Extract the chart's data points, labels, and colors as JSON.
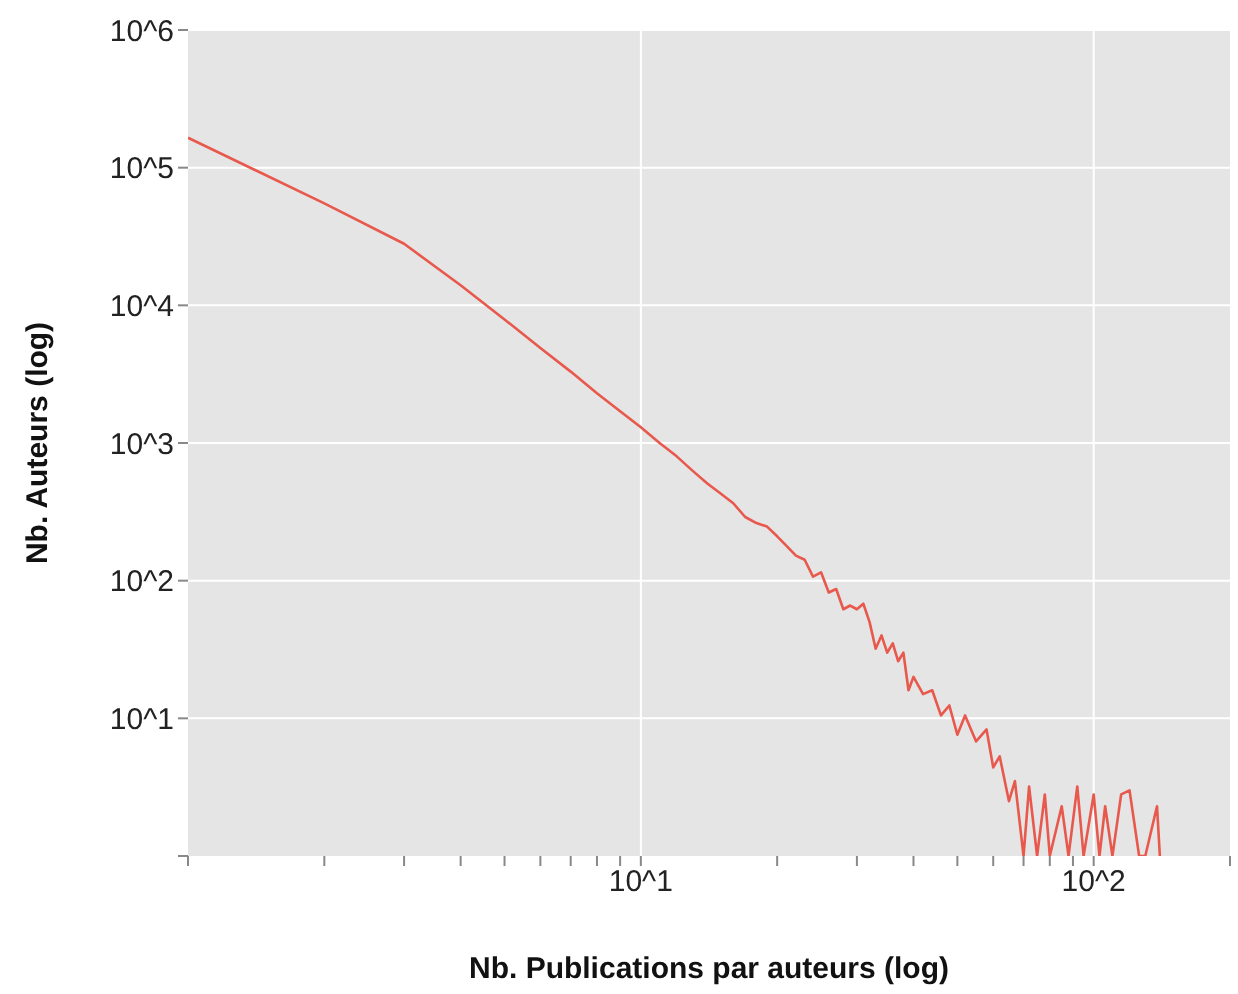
{
  "chart_data": {
    "type": "line",
    "xlabel": "Nb. Publications par auteurs (log)",
    "ylabel": "Nb. Auteurs (log)",
    "log": "xy",
    "grid": true,
    "legend": false,
    "marker": "none",
    "line_style": "solid",
    "xlim": [
      1,
      200
    ],
    "ylim": [
      1,
      1000000
    ],
    "xticks": [
      {
        "value": 1,
        "label": null
      },
      {
        "value": 2,
        "label": null
      },
      {
        "value": 3,
        "label": null
      },
      {
        "value": 4,
        "label": null
      },
      {
        "value": 5,
        "label": null
      },
      {
        "value": 6,
        "label": null
      },
      {
        "value": 7,
        "label": null
      },
      {
        "value": 8,
        "label": null
      },
      {
        "value": 9,
        "label": null
      },
      {
        "value": 10,
        "label": "10^1"
      },
      {
        "value": 20,
        "label": null
      },
      {
        "value": 30,
        "label": null
      },
      {
        "value": 40,
        "label": null
      },
      {
        "value": 50,
        "label": null
      },
      {
        "value": 60,
        "label": null
      },
      {
        "value": 70,
        "label": null
      },
      {
        "value": 80,
        "label": null
      },
      {
        "value": 90,
        "label": null
      },
      {
        "value": 100,
        "label": "10^2"
      },
      {
        "value": 200,
        "label": null
      }
    ],
    "yticks": [
      {
        "value": 1,
        "label": null
      },
      {
        "value": 10,
        "label": "10^1"
      },
      {
        "value": 100,
        "label": "10^2"
      },
      {
        "value": 1000,
        "label": "10^3"
      },
      {
        "value": 10000,
        "label": "10^4"
      },
      {
        "value": 100000,
        "label": "10^5"
      },
      {
        "value": 1000000,
        "label": "10^6"
      }
    ],
    "series": [
      {
        "color": "#e8584c",
        "x": [
          1,
          2,
          3,
          4,
          5,
          6,
          7,
          8,
          9,
          10,
          11,
          12,
          13,
          14,
          15,
          16,
          17,
          18,
          19,
          20,
          21,
          22,
          23,
          24,
          25,
          26,
          27,
          28,
          29,
          30,
          31,
          32,
          33,
          34,
          35,
          36,
          37,
          38,
          39,
          40,
          42,
          44,
          46,
          48,
          50,
          52,
          55,
          58,
          60,
          62,
          65,
          67,
          70,
          72,
          75,
          78,
          80,
          85,
          88,
          92,
          95,
          100,
          103,
          106,
          110,
          115,
          120,
          126,
          130,
          138,
          140
        ],
        "values": [
          165000,
          55000,
          28000,
          14000,
          7900,
          4900,
          3300,
          2300,
          1700,
          1300,
          1000,
          800,
          630,
          510,
          430,
          365,
          290,
          262,
          247,
          210,
          178,
          152,
          142,
          107,
          115,
          82,
          87,
          62,
          66,
          62,
          68,
          50,
          32,
          40,
          30,
          35,
          26,
          30,
          16,
          20,
          15,
          16,
          10.5,
          12.4,
          7.6,
          10.5,
          6.8,
          8.3,
          4.4,
          5.3,
          2.5,
          3.5,
          1,
          3.2,
          1,
          2.8,
          1,
          2.3,
          1,
          3.2,
          1,
          2.8,
          1,
          2.3,
          1,
          2.8,
          3,
          1,
          1,
          2.3,
          1
        ]
      }
    ]
  }
}
